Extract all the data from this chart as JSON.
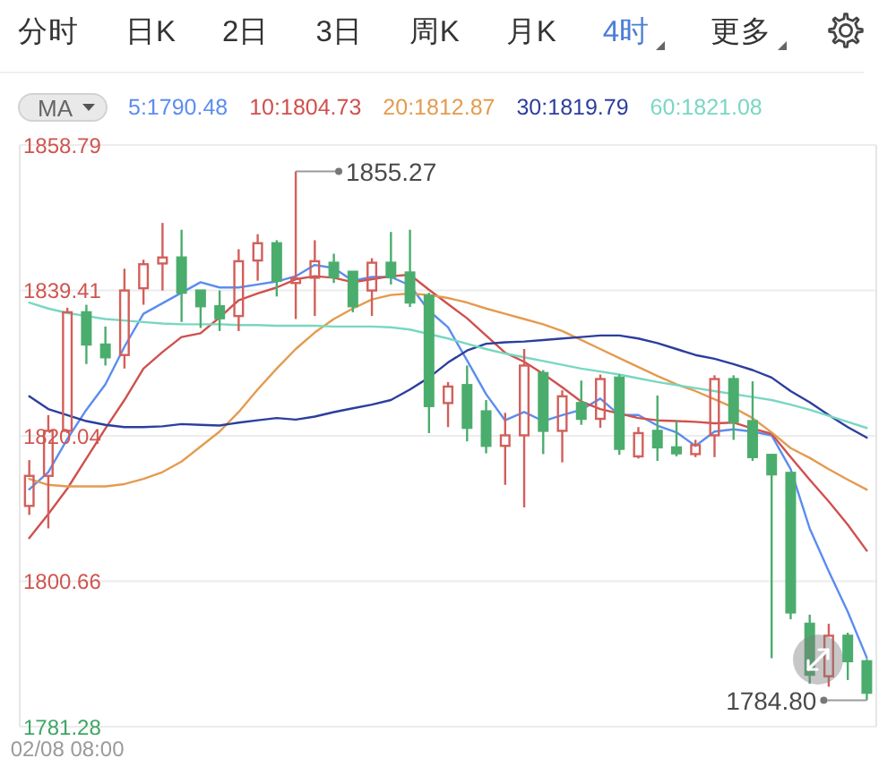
{
  "chart_data": {
    "type": "candlestick",
    "categories": [
      null,
      null,
      "02/08 08:00",
      null,
      null,
      null,
      null,
      null,
      null,
      null,
      null,
      null,
      null,
      null,
      null,
      null,
      null,
      null,
      null,
      null,
      null,
      null,
      null,
      null,
      null,
      null,
      null,
      null,
      null,
      null,
      null,
      null,
      null,
      null,
      null,
      null,
      null,
      null,
      null,
      null,
      null,
      null,
      null,
      null,
      null
    ],
    "ohlc": [
      [
        1810.7,
        1816.8,
        1809.5,
        1814.7
      ],
      [
        1814.7,
        1822.8,
        1807.7,
        1820.7
      ],
      [
        1820.7,
        1837.1,
        1820.4,
        1836.5
      ],
      [
        1836.5,
        1837.5,
        1829.6,
        1832.2
      ],
      [
        1832.2,
        1834.6,
        1829.4,
        1830.5
      ],
      [
        1830.8,
        1842.3,
        1829.0,
        1839.4
      ],
      [
        1839.7,
        1843.5,
        1837.5,
        1842.9
      ],
      [
        1843.0,
        1848.4,
        1839.4,
        1843.8
      ],
      [
        1843.8,
        1847.5,
        1835.2,
        1839.1
      ],
      [
        1839.4,
        1839.4,
        1834.4,
        1837.3
      ],
      [
        1837.3,
        1839.4,
        1834.0,
        1835.7
      ],
      [
        1836.0,
        1844.9,
        1834.0,
        1843.3
      ],
      [
        1843.4,
        1846.9,
        1840.7,
        1845.7
      ],
      [
        1845.7,
        1846.1,
        1838.6,
        1840.7
      ],
      [
        1840.4,
        1855.27,
        1835.6,
        1841.0
      ],
      [
        1841.1,
        1846.1,
        1836.0,
        1843.3
      ],
      [
        1843.1,
        1844.3,
        1840.4,
        1841.2
      ],
      [
        1841.9,
        1841.9,
        1836.5,
        1837.3
      ],
      [
        1839.4,
        1843.7,
        1836.0,
        1843.1
      ],
      [
        1843.1,
        1847.2,
        1840.2,
        1841.2
      ],
      [
        1841.8,
        1847.5,
        1837.2,
        1837.8
      ],
      [
        1838.7,
        1839.1,
        1820.4,
        1824.0
      ],
      [
        1824.4,
        1827.2,
        1821.2,
        1826.6
      ],
      [
        1826.8,
        1829.4,
        1819.3,
        1821.1
      ],
      [
        1823.3,
        1824.8,
        1817.7,
        1818.7
      ],
      [
        1818.7,
        1823.1,
        1813.5,
        1820.1
      ],
      [
        1820.1,
        1831.6,
        1810.5,
        1829.4
      ],
      [
        1828.4,
        1828.8,
        1817.6,
        1820.7
      ],
      [
        1820.7,
        1826.1,
        1816.5,
        1825.3
      ],
      [
        1824.4,
        1827.4,
        1821.5,
        1822.3
      ],
      [
        1822.3,
        1828.2,
        1821.1,
        1827.6
      ],
      [
        1827.8,
        1828.2,
        1817.5,
        1818.3
      ],
      [
        1817.3,
        1821.2,
        1817.0,
        1820.4
      ],
      [
        1820.7,
        1825.4,
        1816.7,
        1818.5
      ],
      [
        1818.5,
        1822.0,
        1817.3,
        1817.7
      ],
      [
        1817.6,
        1819.5,
        1817.2,
        1818.8
      ],
      [
        1820.1,
        1828.1,
        1817.2,
        1827.6
      ],
      [
        1827.6,
        1828.1,
        1819.5,
        1821.9
      ],
      [
        1822.0,
        1827.3,
        1816.7,
        1817.2
      ],
      [
        1817.5,
        1817.5,
        1790.4,
        1814.9
      ],
      [
        1815.1,
        1815.1,
        1795.6,
        1796.5
      ],
      [
        1795.0,
        1796.2,
        1787.0,
        1788.2
      ],
      [
        1788.0,
        1795.0,
        1786.6,
        1793.4
      ],
      [
        1793.4,
        1793.8,
        1787.5,
        1790.0
      ],
      [
        1790.0,
        1790.3,
        1784.8,
        1785.8
      ]
    ],
    "colors": [
      "#d25f5b",
      "#d25f5b",
      "#d25f5b",
      "#4bad6d",
      "#4bad6d",
      "#d25f5b",
      "#d25f5b",
      "#d25f5b",
      "#4bad6d",
      "#4bad6d",
      "#4bad6d",
      "#d25f5b",
      "#d25f5b",
      "#4bad6d",
      "#d25f5b",
      "#d25f5b",
      "#4bad6d",
      "#4bad6d",
      "#d25f5b",
      "#4bad6d",
      "#4bad6d",
      "#4bad6d",
      "#d25f5b",
      "#4bad6d",
      "#4bad6d",
      "#d25f5b",
      "#d25f5b",
      "#4bad6d",
      "#d25f5b",
      "#4bad6d",
      "#d25f5b",
      "#4bad6d",
      "#d25f5b",
      "#4bad6d",
      "#4bad6d",
      "#d25f5b",
      "#d25f5b",
      "#4bad6d",
      "#4bad6d",
      "#4bad6d",
      "#4bad6d",
      "#4bad6d",
      "#d25f5b",
      "#4bad6d",
      "#4bad6d"
    ],
    "series": [
      {
        "type": "line",
        "name": "5:1790.48",
        "color": "#5b8def",
        "values": [
          1812.9,
          1815.2,
          1819.6,
          1823.5,
          1826.9,
          1831.9,
          1836.3,
          1837.7,
          1839.1,
          1840.5,
          1839.8,
          1839.8,
          1840.2,
          1840.6,
          1841.3,
          1842.8,
          1842.4,
          1840.7,
          1841.2,
          1841.2,
          1840.1,
          1836.7,
          1834.5,
          1830.1,
          1825.6,
          1822.1,
          1823.2,
          1822.0,
          1822.8,
          1823.5,
          1825.0,
          1822.8,
          1822.8,
          1821.4,
          1820.5,
          1818.7,
          1820.6,
          1820.9,
          1820.6,
          1820.1,
          1815.6,
          1807.7,
          1802.0,
          1796.6,
          1790.48
        ]
      },
      {
        "type": "line",
        "name": "10:1804.73",
        "color": "#d0504d",
        "values": [
          1806.4,
          1809.6,
          1813.0,
          1817.0,
          1821.0,
          1824.8,
          1829.0,
          1831.2,
          1833.2,
          1833.7,
          1835.8,
          1838.1,
          1839.0,
          1839.8,
          1840.9,
          1841.3,
          1841.1,
          1840.5,
          1840.9,
          1841.3,
          1841.5,
          1839.5,
          1837.6,
          1835.7,
          1833.4,
          1831.1,
          1829.9,
          1828.3,
          1826.5,
          1824.6,
          1823.6,
          1823.0,
          1822.4,
          1822.1,
          1822.0,
          1821.9,
          1821.7,
          1821.8,
          1821.0,
          1820.3,
          1817.2,
          1814.2,
          1811.3,
          1808.2,
          1804.73
        ]
      },
      {
        "type": "line",
        "name": "20:1812.87",
        "color": "#e49b4f",
        "values": [
          1814.3,
          1813.5,
          1813.3,
          1813.3,
          1813.3,
          1813.6,
          1814.3,
          1815.2,
          1816.6,
          1818.6,
          1820.6,
          1823.2,
          1826.2,
          1829.0,
          1831.6,
          1833.8,
          1835.6,
          1837.0,
          1838.2,
          1838.8,
          1839.0,
          1838.8,
          1838.4,
          1837.8,
          1837.0,
          1836.3,
          1835.6,
          1834.9,
          1834.0,
          1832.8,
          1831.6,
          1830.4,
          1829.2,
          1828.0,
          1826.9,
          1826.0,
          1824.9,
          1823.8,
          1822.4,
          1820.5,
          1818.4,
          1817.1,
          1815.6,
          1814.2,
          1812.87
        ]
      },
      {
        "type": "line",
        "name": "30:1819.79",
        "color": "#2c3e9e",
        "values": [
          1825.3,
          1823.6,
          1822.8,
          1822.0,
          1821.5,
          1821.2,
          1821.2,
          1821.3,
          1821.6,
          1821.5,
          1821.4,
          1821.8,
          1822.1,
          1822.4,
          1822.2,
          1822.6,
          1823.2,
          1823.7,
          1824.2,
          1824.8,
          1826.2,
          1827.8,
          1829.8,
          1831.4,
          1832.3,
          1832.5,
          1832.6,
          1832.8,
          1833.0,
          1833.2,
          1833.4,
          1833.4,
          1833.0,
          1832.4,
          1831.6,
          1830.8,
          1830.3,
          1829.6,
          1828.8,
          1827.8,
          1826.0,
          1824.5,
          1822.8,
          1821.2,
          1819.79
        ]
      },
      {
        "type": "line",
        "name": "60:1821.08",
        "color": "#79d7c2",
        "values": [
          1837.8,
          1837.0,
          1836.4,
          1836.0,
          1835.6,
          1835.4,
          1835.2,
          1835.0,
          1834.9,
          1834.9,
          1834.9,
          1834.8,
          1834.8,
          1834.7,
          1834.7,
          1834.7,
          1834.6,
          1834.6,
          1834.6,
          1834.5,
          1834.2,
          1833.6,
          1833.0,
          1832.3,
          1831.6,
          1831.0,
          1830.5,
          1830.0,
          1829.5,
          1829.0,
          1828.6,
          1828.2,
          1827.7,
          1827.2,
          1826.8,
          1826.4,
          1826.0,
          1825.6,
          1825.2,
          1824.8,
          1824.2,
          1823.5,
          1822.7,
          1821.9,
          1821.08
        ]
      }
    ],
    "legend": "top left",
    "legend_title": "MA",
    "marker": "none",
    "ylim": [
      1781.28,
      1858.79
    ],
    "yticks": [
      1781.28,
      1800.66,
      1820.04,
      1839.41,
      1858.79
    ],
    "grid": "y",
    "annotations": [
      "分时",
      "日K",
      "2日",
      "3日",
      "周K",
      "月K",
      "4时",
      "更多",
      "1855.27",
      "1784.80"
    ]
  }
}
